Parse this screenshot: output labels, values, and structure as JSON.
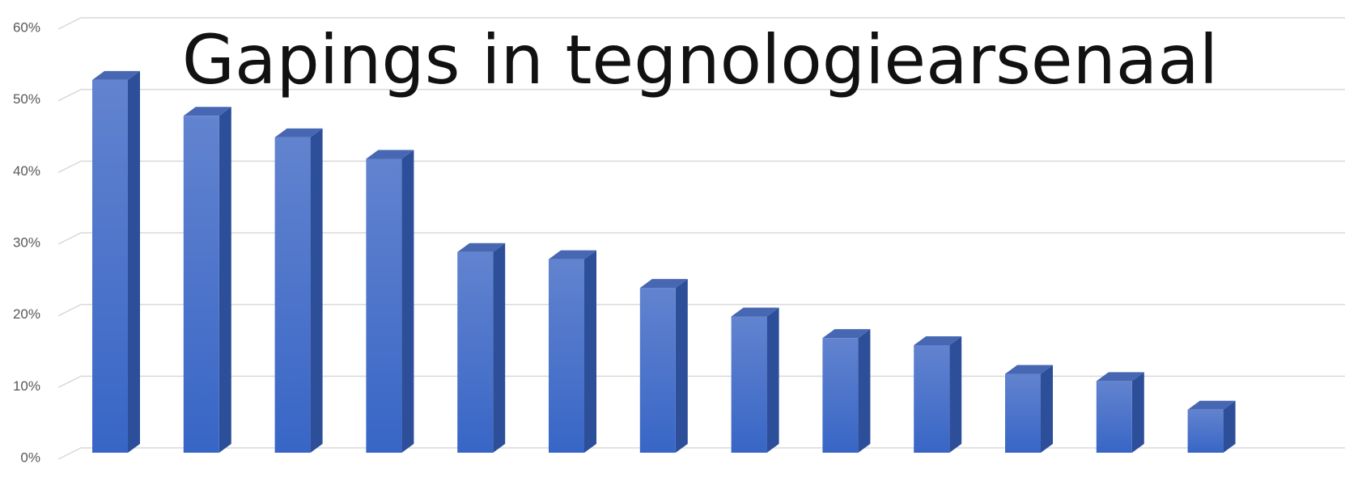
{
  "chart_data": {
    "type": "bar",
    "title": "Gapings in tegnologiearsenaal",
    "categories": [
      null,
      null,
      null,
      null,
      null,
      null,
      null,
      null,
      null,
      null,
      null,
      null,
      null
    ],
    "values": [
      52,
      47,
      44,
      41,
      28,
      27,
      23,
      19,
      16,
      15,
      11,
      10,
      6
    ],
    "color": "#4472c4",
    "ylim": [
      0,
      60
    ],
    "yticks": [
      {
        "value": 0,
        "label": "0%"
      },
      {
        "value": 10,
        "label": "10%"
      },
      {
        "value": 20,
        "label": "20%"
      },
      {
        "value": 30,
        "label": "30%"
      },
      {
        "value": 40,
        "label": "40%"
      },
      {
        "value": 50,
        "label": "50%"
      },
      {
        "value": 60,
        "label": "60%"
      }
    ],
    "grid": true
  }
}
